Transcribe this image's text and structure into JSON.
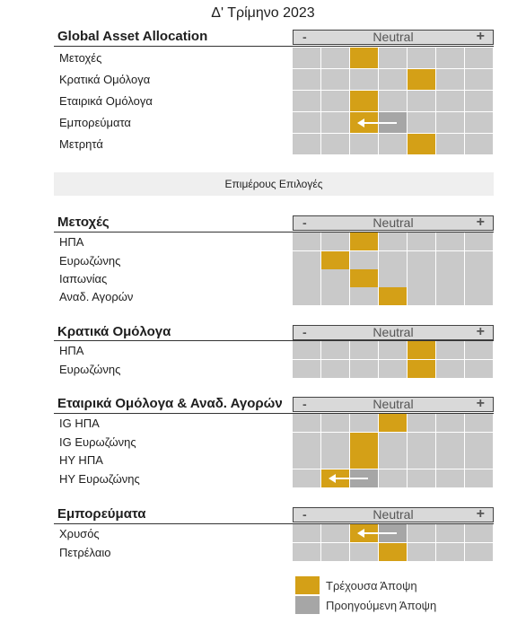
{
  "title": "Δ' Τρίμηνο 2023",
  "scale": {
    "minus": "-",
    "neutral": "Neutral",
    "plus": "+"
  },
  "banner": "Επιμέρους Επιλογές",
  "colors": {
    "current": "#d4a017",
    "previous": "#a6a6a6",
    "empty": "#c9c9c9",
    "header": "#d9d9d9"
  },
  "sections": [
    {
      "title": "Global Asset Allocation",
      "rows": [
        {
          "label": "Μετοχές",
          "current": 3
        },
        {
          "label": "Κρατικά Ομόλογα",
          "current": 5
        },
        {
          "label": "Εταιρικά Ομόλογα",
          "current": 3
        },
        {
          "label": "Εμπορεύματα",
          "current": 3,
          "previous": 4
        },
        {
          "label": "Μετρητά",
          "current": 5
        }
      ]
    },
    {
      "title": "Μετοχές",
      "rows": [
        {
          "label": "ΗΠΑ",
          "current": 3
        },
        {
          "label": "Ευρωζώνης",
          "current": 2
        },
        {
          "label": "Ιαπωνίας",
          "current": 3
        },
        {
          "label": "Αναδ. Αγορών",
          "current": 4
        }
      ]
    },
    {
      "title": "Κρατικά Ομόλογα",
      "rows": [
        {
          "label": "ΗΠΑ",
          "current": 5
        },
        {
          "label": "Ευρωζώνης",
          "current": 5
        }
      ]
    },
    {
      "title": "Εταιρικά Ομόλογα & Αναδ. Αγορών",
      "rows": [
        {
          "label": "IG ΗΠΑ",
          "current": 4
        },
        {
          "label": "IG Ευρωζώνης",
          "current": 3
        },
        {
          "label": "HY ΗΠΑ",
          "current": 3
        },
        {
          "label": "HY Ευρωζώνης",
          "current": 2,
          "previous": 3
        }
      ]
    },
    {
      "title": "Εμπορεύματα",
      "rows": [
        {
          "label": "Χρυσός",
          "current": 3,
          "previous": 4
        },
        {
          "label": "Πετρέλαιο",
          "current": 4
        }
      ]
    }
  ],
  "legend": {
    "current": "Τρέχουσα Άποψη",
    "previous": "Προηγούμενη Άποψη"
  }
}
